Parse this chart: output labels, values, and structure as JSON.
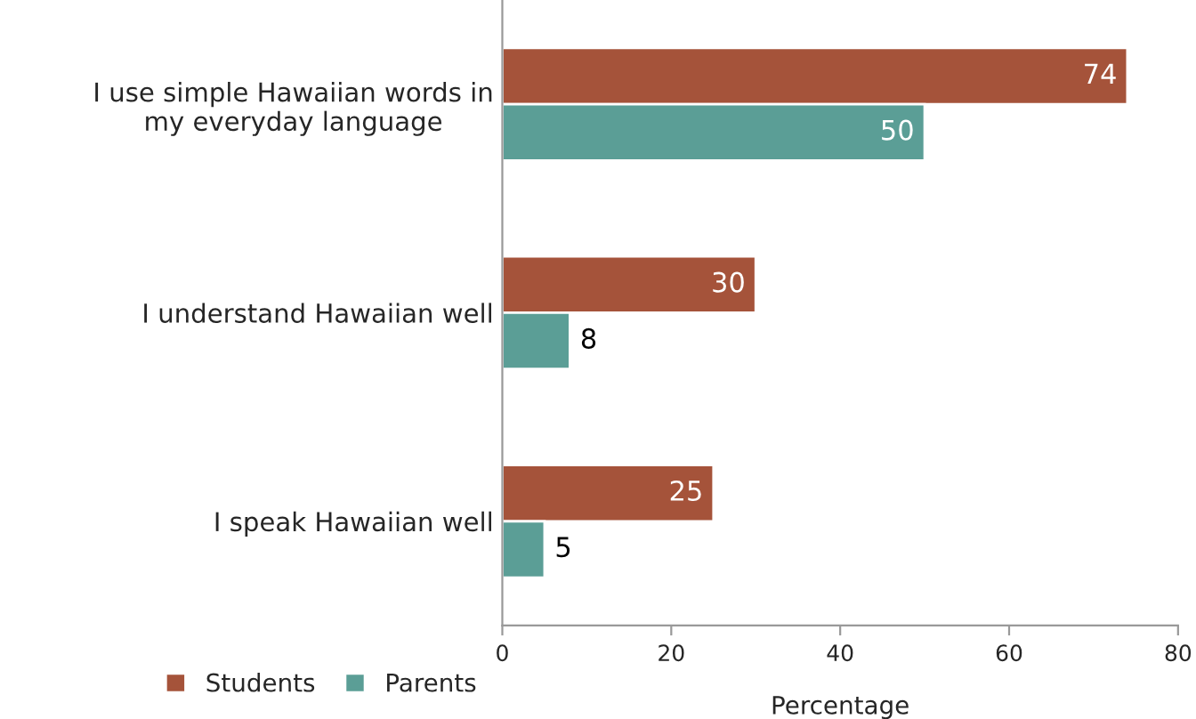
{
  "chart_data": {
    "type": "bar",
    "orientation": "horizontal",
    "categories": [
      "I use simple Hawaiian words in my everyday language",
      "I understand Hawaiian well",
      "I speak Hawaiian well"
    ],
    "series": [
      {
        "name": "Students",
        "color": "#a5533a",
        "values": [
          74,
          30,
          25
        ]
      },
      {
        "name": "Parents",
        "color": "#5b9e96",
        "values": [
          50,
          8,
          5
        ]
      }
    ],
    "xlabel": "Percentage",
    "xlim": [
      0,
      80
    ],
    "xticks": [
      0,
      20,
      40,
      60,
      80
    ],
    "data_labels": true,
    "legend": "bottom left",
    "grid": false
  }
}
